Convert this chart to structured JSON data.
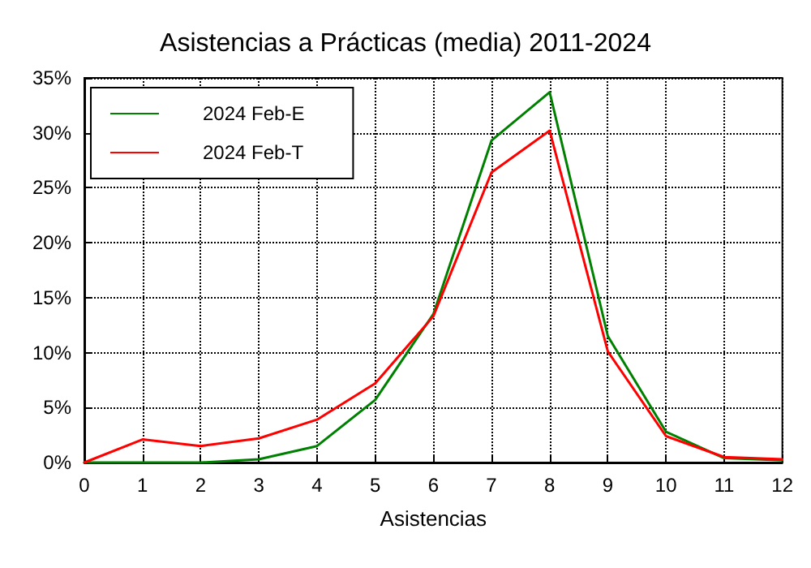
{
  "chart_data": {
    "type": "line",
    "title": "Asistencias a Prácticas (media) 2011-2024",
    "xlabel": "Asistencias",
    "x": [
      0,
      1,
      2,
      3,
      4,
      5,
      6,
      7,
      8,
      9,
      10,
      11,
      12
    ],
    "series": [
      {
        "name": "2024 Feb-E",
        "color": "#008000",
        "values": [
          0,
          0,
          0,
          0.3,
          1.5,
          5.7,
          13.5,
          29.3,
          33.7,
          11.5,
          2.8,
          0.4,
          0.2
        ]
      },
      {
        "name": "2024 Feb-T",
        "color": "#ff0000",
        "values": [
          0,
          2.1,
          1.5,
          2.2,
          3.9,
          7.2,
          13.3,
          26.4,
          30.2,
          10.1,
          2.4,
          0.5,
          0.3
        ]
      }
    ],
    "xlim": [
      0,
      12
    ],
    "xticks": [
      0,
      1,
      2,
      3,
      4,
      5,
      6,
      7,
      8,
      9,
      10,
      11,
      12
    ],
    "ylim": [
      0,
      35
    ],
    "yticks": [
      {
        "value": 0,
        "label": "0%"
      },
      {
        "value": 5,
        "label": "5%"
      },
      {
        "value": 10,
        "label": "10%"
      },
      {
        "value": 15,
        "label": "15%"
      },
      {
        "value": 20,
        "label": "20%"
      },
      {
        "value": 25,
        "label": "25%"
      },
      {
        "value": 30,
        "label": "30%"
      },
      {
        "value": 35,
        "label": "35%"
      }
    ],
    "grid": true,
    "legend": "top left",
    "marker": "none",
    "line_style": "solid"
  }
}
